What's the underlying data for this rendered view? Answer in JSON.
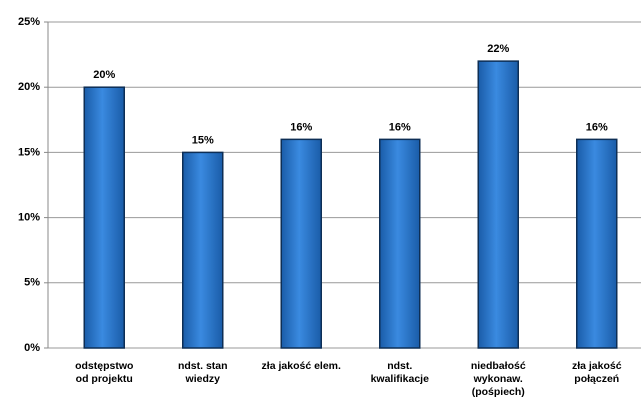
{
  "chart_data": {
    "type": "bar",
    "categories": [
      "odstępstwo\nod projektu",
      "ndst. stan\nwiedzy",
      "zła jakość elem.",
      "ndst.\nkwalifikacje",
      "niedbałość\nwykonaw.\n(pośpiech)",
      "zła jakość\npołączeń"
    ],
    "values": [
      20,
      15,
      16,
      16,
      22,
      16
    ],
    "value_labels": [
      "20%",
      "15%",
      "16%",
      "16%",
      "22%",
      "16%"
    ],
    "color": "#2472c8",
    "ylim": [
      0,
      25
    ],
    "yticks": [
      {
        "value": 0,
        "label": "0%"
      },
      {
        "value": 5,
        "label": "5%"
      },
      {
        "value": 10,
        "label": "10%"
      },
      {
        "value": 15,
        "label": "15%"
      },
      {
        "value": 20,
        "label": "20%"
      },
      {
        "value": 25,
        "label": "25%"
      }
    ],
    "grid": true
  }
}
